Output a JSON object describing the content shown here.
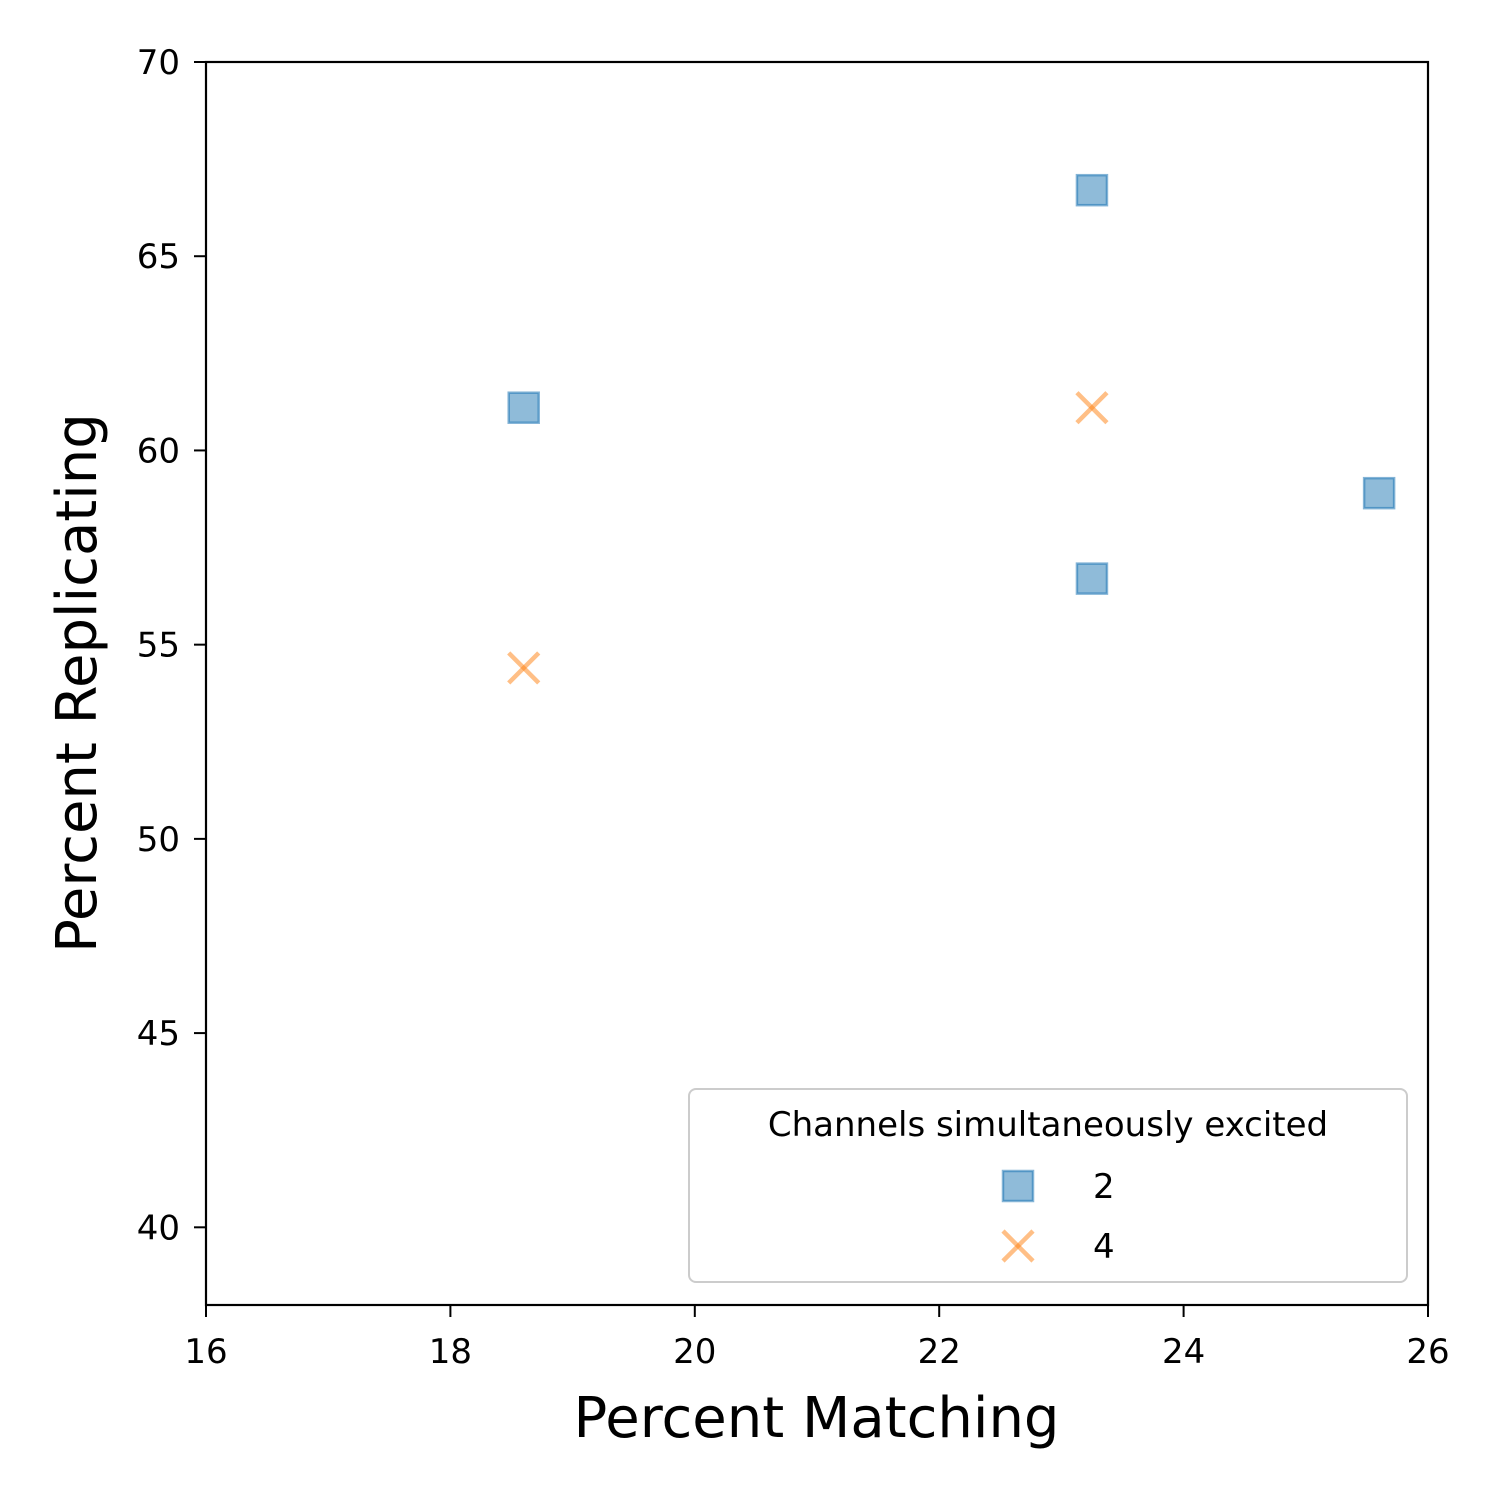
{
  "chart_data": {
    "type": "scatter",
    "title": "",
    "xlabel": "Percent Matching",
    "ylabel": "Percent Replicating",
    "xlim": [
      16,
      26
    ],
    "ylim": [
      38,
      70
    ],
    "xticks": [
      "16",
      "18",
      "20",
      "22",
      "24",
      "26"
    ],
    "yticks": [
      "40",
      "45",
      "50",
      "55",
      "60",
      "65",
      "70"
    ],
    "grid": false,
    "legend": {
      "title": "Channels simultaneously excited",
      "placement": "bottom-right"
    },
    "series": [
      {
        "name": "2",
        "marker": "square",
        "color": "#1f77b4",
        "points": [
          {
            "x": 18.6,
            "y": 61.1
          },
          {
            "x": 23.25,
            "y": 66.7
          },
          {
            "x": 23.25,
            "y": 56.7
          },
          {
            "x": 25.6,
            "y": 58.9
          }
        ]
      },
      {
        "name": "4",
        "marker": "x",
        "color": "#ff7f0e",
        "points": [
          {
            "x": 18.6,
            "y": 54.4
          },
          {
            "x": 23.25,
            "y": 61.1
          }
        ]
      }
    ]
  }
}
